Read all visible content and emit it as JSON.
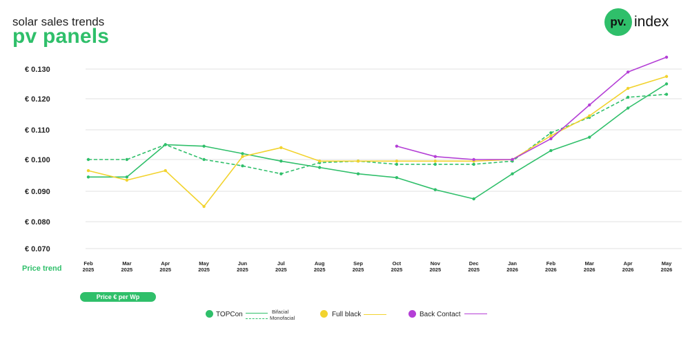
{
  "header": {
    "subtitle": "solar sales trends",
    "title": "pv panels",
    "logo_mark": "pv.",
    "logo_word": "index"
  },
  "colors": {
    "topcon": "#2fbf6a",
    "full_black": "#f2d32e",
    "back_contact": "#b43fd6",
    "grid": "#e2e2e2",
    "accent": "#2fbf6a"
  },
  "labels": {
    "price_trend": "Price trend",
    "price_unit": "Price € per Wp"
  },
  "legend": {
    "topcon": "TOPCon",
    "bifacial": "Bifacial",
    "monofacial": "Monofacial",
    "full_black": "Full black",
    "back_contact": "Back Contact"
  },
  "chart_data": {
    "type": "line",
    "x": [
      [
        "Feb",
        "2025"
      ],
      [
        "Mar",
        "2025"
      ],
      [
        "Apr",
        "2025"
      ],
      [
        "May",
        "2025"
      ],
      [
        "Jun",
        "2025"
      ],
      [
        "Jul",
        "2025"
      ],
      [
        "Aug",
        "2025"
      ],
      [
        "Sep",
        "2025"
      ],
      [
        "Oct",
        "2025"
      ],
      [
        "Nov",
        "2025"
      ],
      [
        "Dec",
        "2025"
      ],
      [
        "Jan",
        "2026"
      ],
      [
        "Feb",
        "2026"
      ],
      [
        "Mar",
        "2026"
      ],
      [
        "Apr",
        "2026"
      ],
      [
        "May",
        "2026"
      ]
    ],
    "y_ticks": [
      "€ 0.130",
      "€ 0.120",
      "€ 0.110",
      "€ 0.100",
      "€ 0.090",
      "€ 0.080",
      "€ 0.070"
    ],
    "ylim": [
      0.07,
      0.13
    ],
    "grid": true,
    "series": [
      {
        "name": "Bifacial",
        "group": "TOPCon",
        "style": "solid",
        "color": "#2fbf6a",
        "values": [
          0.0945,
          0.0945,
          0.105,
          0.1045,
          0.102,
          0.0995,
          0.0975,
          0.0955,
          0.0943,
          0.0905,
          0.0875,
          0.0955,
          0.103,
          0.1075,
          0.117,
          0.125
        ]
      },
      {
        "name": "Monofacial",
        "group": "TOPCon",
        "style": "dashed",
        "color": "#2fbf6a",
        "values": [
          0.1,
          0.1,
          0.105,
          0.1,
          0.098,
          0.0955,
          0.099,
          0.0995,
          0.0985,
          0.0985,
          0.0985,
          0.0995,
          0.109,
          0.114,
          0.1205,
          0.1215
        ]
      },
      {
        "name": "Full black",
        "style": "solid",
        "color": "#f2d32e",
        "values": [
          0.0965,
          0.0935,
          0.0965,
          0.085,
          0.101,
          0.104,
          0.0995,
          0.0995,
          0.0995,
          0.0995,
          0.0995,
          0.1,
          0.108,
          0.1145,
          0.1235,
          0.1275
        ]
      },
      {
        "name": "Back Contact",
        "style": "solid",
        "color": "#b43fd6",
        "values": [
          null,
          null,
          null,
          null,
          null,
          null,
          null,
          null,
          0.1045,
          0.101,
          0.1,
          0.1,
          0.107,
          0.118,
          0.129,
          0.134
        ]
      }
    ],
    "legend_position": "bottom"
  }
}
